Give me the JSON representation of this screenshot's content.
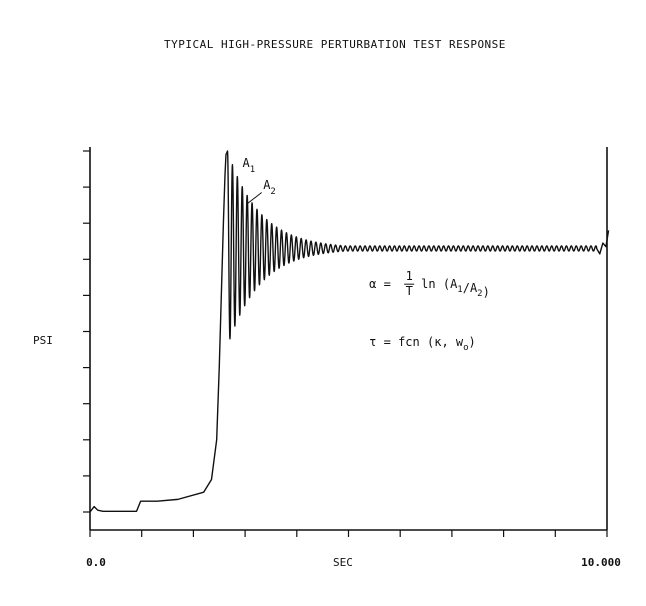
{
  "chart_data": {
    "type": "line",
    "title": "TYPICAL HIGH-PRESSURE PERTURBATION TEST RESPONSE",
    "xlabel": "SEC",
    "ylabel": "PSI",
    "xlim": [
      0,
      10
    ],
    "ylim": [
      0,
      10
    ],
    "x_tick_labels": [
      {
        "x": 0,
        "label": "0.0"
      },
      {
        "x": 10,
        "label": "10.000"
      }
    ],
    "x_minor_ticks": [
      0,
      1,
      2,
      3,
      4,
      5,
      6,
      7,
      8,
      9,
      10
    ],
    "y_minor_ticks": [
      0,
      1,
      2,
      3,
      4,
      5,
      6,
      7,
      8,
      9,
      10
    ],
    "grid": false,
    "series": [
      {
        "color": "#111111",
        "x": [
          0,
          0.08,
          0.15,
          0.25,
          0.5,
          0.9,
          0.98,
          1.05,
          1.3,
          1.7,
          2.2,
          2.35,
          2.45,
          2.5,
          2.55,
          2.58,
          2.61,
          2.63,
          2.66
        ],
        "y": [
          0,
          0.15,
          0.05,
          0.02,
          0.02,
          0.02,
          0.3,
          0.3,
          0.3,
          0.35,
          0.55,
          0.9,
          2.0,
          4.0,
          6.5,
          8.0,
          9.3,
          9.9,
          10.0
        ]
      }
    ],
    "oscillation": {
      "start_x": 2.66,
      "end_x": 9.8,
      "settle_y": 7.3,
      "initial_amplitude": 2.7,
      "period": 0.095,
      "damping_per_sec": 1.6,
      "min_amplitude": 0.07
    },
    "tail": {
      "x": [
        9.8,
        9.86,
        9.92,
        9.98,
        10.03
      ],
      "y": [
        7.3,
        7.15,
        7.45,
        7.35,
        7.8
      ]
    },
    "annotations": {
      "a1": {
        "base": "A",
        "sub": "1",
        "x": 2.95,
        "y": 9.55
      },
      "a2": {
        "base": "A",
        "sub": "2",
        "x": 3.35,
        "y": 8.95
      },
      "a2_leader": {
        "x1": 3.05,
        "y1": 8.55,
        "x2": 3.32,
        "y2": 8.85
      },
      "alpha_formula": {
        "lhs": "α =",
        "num": "1",
        "den": "T",
        "rhs_pre": "ln (A",
        "rhs_sub1": "1",
        "rhs_mid": "/A",
        "rhs_sub2": "2",
        "rhs_post": ")",
        "x": 5.4,
        "y": 6.2
      },
      "tau_formula": {
        "lhs": "τ = fcn (",
        "kappa": "κ",
        "mid": ", w",
        "sub": "o",
        "post": ")",
        "x": 5.4,
        "y": 4.6
      }
    }
  }
}
